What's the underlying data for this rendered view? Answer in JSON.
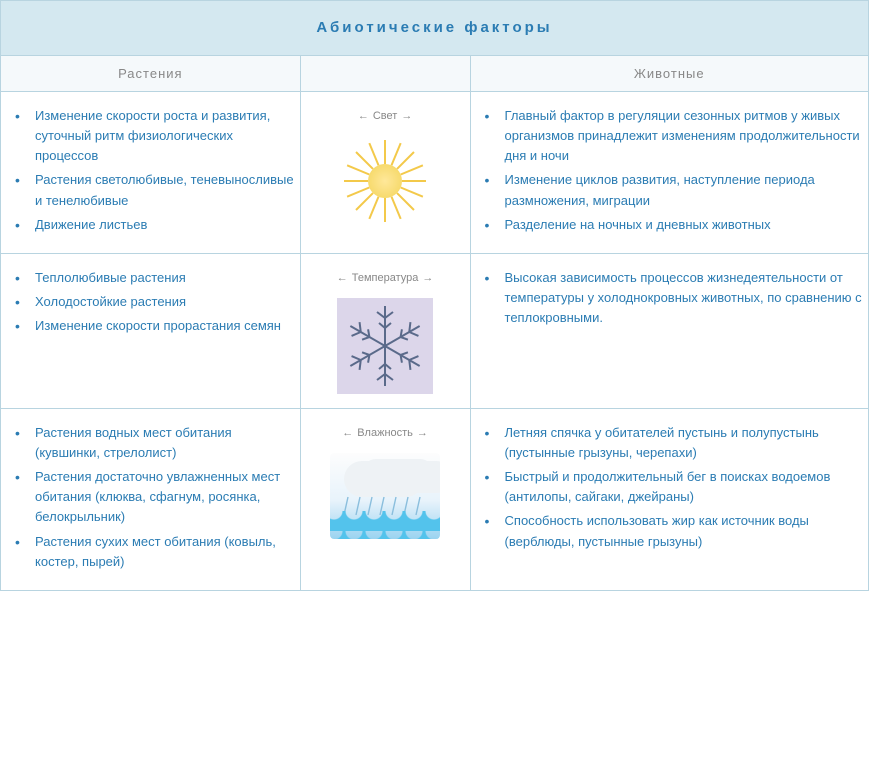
{
  "title": "Абиотические факторы",
  "headers": {
    "plants": "Растения",
    "animals": "Животные"
  },
  "colors": {
    "border": "#b8d4e0",
    "title_bg": "#d4e8f0",
    "header_bg": "#f5f9fb",
    "link_text": "#2b7cb3",
    "muted_text": "#888888"
  },
  "rows": [
    {
      "factor_label": "Свет",
      "icon": "sun",
      "plants": [
        "Изменение скорости роста и развития, суточный ритм физиологических процессов",
        "Растения светолюбивые, теневыносливые и тенелюбивые",
        "Движение листьев"
      ],
      "animals": [
        "Главный фактор в регуляции сезонных ритмов у живых организмов принадлежит изменениям продолжительности дня и ночи",
        "Изменение циклов развития, наступление периода размножения, миграции",
        "Разделение на ночных и дневных животных"
      ]
    },
    {
      "factor_label": "Температура",
      "icon": "snowflake",
      "plants": [
        "Теплолюбивые растения",
        "Холодостойкие растения",
        "Изменение скорости прорастания семян"
      ],
      "animals": [
        "Высокая зависимость процессов жизнедеятельности от температуры у холоднокровных животных, по сравнению с теплокровными."
      ]
    },
    {
      "factor_label": "Влажность",
      "icon": "humidity",
      "plants": [
        "Растения водных мест обитания (кувшинки, стрелолист)",
        "Растения достаточно увлажненных мест обитания (клюква, сфагнум, росянка, белокрыльник)",
        "Растения сухих мест обитания (ковыль, костер, пырей)"
      ],
      "animals": [
        "Летняя спячка у обитателей пустынь и полупустынь (пустынные грызуны, черепахи)",
        "Быстрый и продолжительный бег в поисках водоемов (антилопы, сайгаки, джейраны)",
        "Способность использовать жир как источник воды (верблюды, пустынные грызуны)"
      ]
    }
  ]
}
